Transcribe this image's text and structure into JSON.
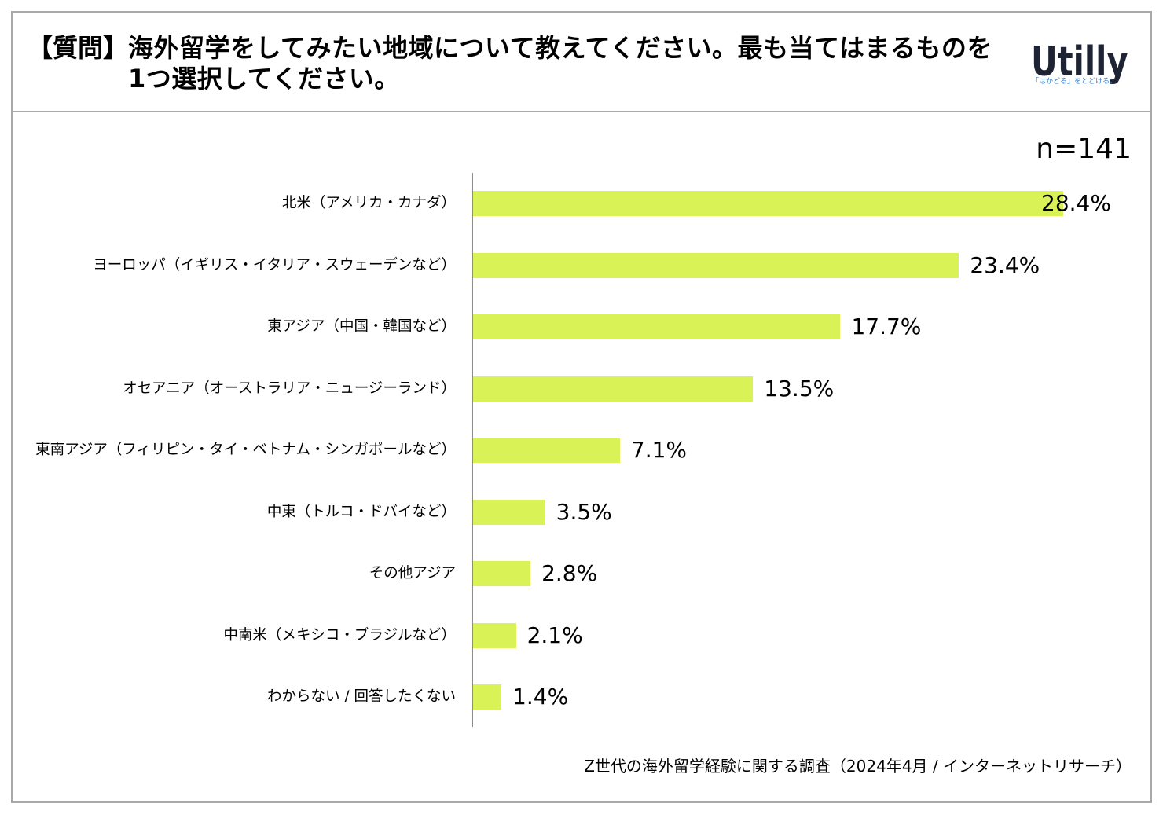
{
  "header": {
    "prefix": "【質問】",
    "question_lines": [
      "海外留学をしてみたい地域について教えてください。最も当てはまるものを",
      "1つ選択してください。"
    ]
  },
  "logo": {
    "wordmark": "Utilly",
    "tagline": "「はかどる」をとどける。",
    "wordmark_color": "#1e2433",
    "tagline_color": "#2f7fd1"
  },
  "sample_size": "n=141",
  "chart_data": {
    "type": "bar",
    "orientation": "horizontal",
    "categories": [
      "北米（アメリカ・カナダ）",
      "ヨーロッパ（イギリス・イタリア・スウェーデンなど）",
      "東アジア（中国・韓国など）",
      "オセアニア（オーストラリア・ニュージーランド）",
      "東南アジア（フィリピン・タイ・ベトナム・シンガポールなど）",
      "中東（トルコ・ドバイなど）",
      "その他アジア",
      "中南米（メキシコ・ブラジルなど）",
      "わからない / 回答したくない"
    ],
    "values": [
      28.4,
      23.4,
      17.7,
      13.5,
      7.1,
      3.5,
      2.8,
      2.1,
      1.4
    ],
    "data_labels": [
      "28.4%",
      "23.4%",
      "17.7%",
      "13.5%",
      "7.1%",
      "3.5%",
      "2.8%",
      "2.1%",
      "1.4%"
    ],
    "xlim": [
      0,
      30
    ],
    "xlabel": "",
    "ylabel": "",
    "grid": false,
    "legend": "none",
    "bar_color": "#d9f255",
    "axis_color": "#8c8c8c"
  },
  "footer": {
    "source": "Z世代の海外留学経験に関する調査（2024年4月 / インターネットリサーチ）"
  },
  "colors": {
    "frame_border": "#a9a9a9"
  }
}
